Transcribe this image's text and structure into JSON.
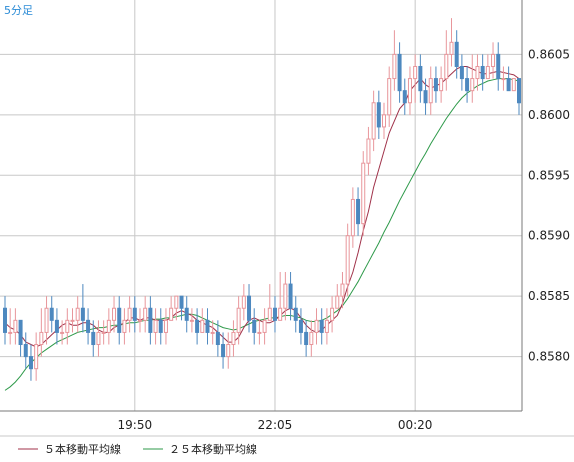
{
  "chart_data": {
    "type": "candlestick",
    "timeframe_label": "5分足",
    "ylim": [
      0.85755,
      0.86095
    ],
    "y_ticks": [
      "0.8605",
      "0.8600",
      "0.8595",
      "0.8590",
      "0.8585",
      "0.8580"
    ],
    "x_ticks": [
      "19:50",
      "22:05",
      "00:20"
    ],
    "grid": true,
    "colors": {
      "up": "#e8969b",
      "down": "#4d88bf",
      "ma5": "#a0324a",
      "ma25": "#2e9a4a",
      "grid": "#c8c8c8",
      "axis": "#7a7a7a"
    },
    "legend": [
      {
        "label": "５本移動平均線",
        "color": "#a0324a"
      },
      {
        "label": "２５本移動平均線",
        "color": "#2e9a4a"
      }
    ],
    "candles": [
      [
        0.8584,
        0.8582,
        0.8585,
        0.8581
      ],
      [
        0.8582,
        0.8582,
        0.8584,
        0.8581
      ],
      [
        0.8582,
        0.8583,
        0.8584,
        0.8581
      ],
      [
        0.8583,
        0.8581,
        0.8583,
        0.858
      ],
      [
        0.8581,
        0.858,
        0.8582,
        0.8579
      ],
      [
        0.858,
        0.8579,
        0.8581,
        0.8578
      ],
      [
        0.8579,
        0.8581,
        0.8582,
        0.8578
      ],
      [
        0.8581,
        0.8582,
        0.8584,
        0.858
      ],
      [
        0.8582,
        0.8584,
        0.8585,
        0.8581
      ],
      [
        0.8584,
        0.8583,
        0.8585,
        0.8582
      ],
      [
        0.8583,
        0.8582,
        0.8584,
        0.8581
      ],
      [
        0.8582,
        0.8582,
        0.8583,
        0.8581
      ],
      [
        0.8582,
        0.8583,
        0.8584,
        0.8581
      ],
      [
        0.8583,
        0.8583,
        0.8584,
        0.8582
      ],
      [
        0.8583,
        0.8584,
        0.8585,
        0.8582
      ],
      [
        0.8584,
        0.8583,
        0.8586,
        0.8582
      ],
      [
        0.8583,
        0.8582,
        0.8584,
        0.8581
      ],
      [
        0.8582,
        0.8581,
        0.8583,
        0.858
      ],
      [
        0.8581,
        0.8582,
        0.8583,
        0.858
      ],
      [
        0.8582,
        0.8582,
        0.8583,
        0.8581
      ],
      [
        0.8582,
        0.8583,
        0.8584,
        0.8581
      ],
      [
        0.8583,
        0.8584,
        0.8585,
        0.8582
      ],
      [
        0.8584,
        0.8582,
        0.8585,
        0.8581
      ],
      [
        0.8582,
        0.8583,
        0.8584,
        0.8581
      ],
      [
        0.8583,
        0.8584,
        0.8585,
        0.8582
      ],
      [
        0.8584,
        0.8583,
        0.8585,
        0.8582
      ],
      [
        0.8583,
        0.8583,
        0.8584,
        0.8582
      ],
      [
        0.8583,
        0.8584,
        0.8585,
        0.8582
      ],
      [
        0.8584,
        0.8582,
        0.8585,
        0.8581
      ],
      [
        0.8582,
        0.8583,
        0.8584,
        0.8581
      ],
      [
        0.8583,
        0.8582,
        0.8584,
        0.8581
      ],
      [
        0.8582,
        0.8583,
        0.8584,
        0.8581
      ],
      [
        0.8583,
        0.8584,
        0.8585,
        0.8583
      ],
      [
        0.8584,
        0.8585,
        0.8585,
        0.8583
      ],
      [
        0.8585,
        0.8584,
        0.8585,
        0.8583
      ],
      [
        0.8584,
        0.8583,
        0.8585,
        0.8582
      ],
      [
        0.8583,
        0.8583,
        0.8584,
        0.8582
      ],
      [
        0.8583,
        0.8582,
        0.8584,
        0.8581
      ],
      [
        0.8582,
        0.8583,
        0.8584,
        0.8582
      ],
      [
        0.8583,
        0.8582,
        0.8584,
        0.8581
      ],
      [
        0.8582,
        0.8582,
        0.8583,
        0.8581
      ],
      [
        0.8582,
        0.8581,
        0.8583,
        0.858
      ],
      [
        0.8581,
        0.858,
        0.8582,
        0.8579
      ],
      [
        0.858,
        0.8581,
        0.8582,
        0.8579
      ],
      [
        0.8581,
        0.8582,
        0.8583,
        0.858
      ],
      [
        0.8582,
        0.8584,
        0.8585,
        0.8581
      ],
      [
        0.8584,
        0.8585,
        0.8586,
        0.8583
      ],
      [
        0.8585,
        0.8583,
        0.8586,
        0.8582
      ],
      [
        0.8583,
        0.8582,
        0.8584,
        0.8581
      ],
      [
        0.8582,
        0.8582,
        0.8583,
        0.8581
      ],
      [
        0.8582,
        0.8583,
        0.8584,
        0.8581
      ],
      [
        0.8583,
        0.8584,
        0.8586,
        0.8583
      ],
      [
        0.8584,
        0.8583,
        0.8585,
        0.8582
      ],
      [
        0.8583,
        0.8584,
        0.8587,
        0.8583
      ],
      [
        0.8584,
        0.8586,
        0.8587,
        0.8583
      ],
      [
        0.8586,
        0.8584,
        0.8587,
        0.8583
      ],
      [
        0.8584,
        0.8583,
        0.8585,
        0.8582
      ],
      [
        0.8583,
        0.8582,
        0.8584,
        0.8581
      ],
      [
        0.8582,
        0.8581,
        0.8583,
        0.858
      ],
      [
        0.8581,
        0.8582,
        0.8583,
        0.858
      ],
      [
        0.8582,
        0.8583,
        0.8584,
        0.8581
      ],
      [
        0.8583,
        0.8582,
        0.8584,
        0.8581
      ],
      [
        0.8582,
        0.8583,
        0.8584,
        0.8581
      ],
      [
        0.8583,
        0.8584,
        0.8585,
        0.8582
      ],
      [
        0.8584,
        0.8585,
        0.8586,
        0.8584
      ],
      [
        0.8585,
        0.8586,
        0.8587,
        0.8584
      ],
      [
        0.8586,
        0.859,
        0.8591,
        0.8585
      ],
      [
        0.859,
        0.8593,
        0.8594,
        0.8589
      ],
      [
        0.8593,
        0.8591,
        0.8594,
        0.859
      ],
      [
        0.8591,
        0.8596,
        0.8597,
        0.859
      ],
      [
        0.8596,
        0.8598,
        0.8599,
        0.8595
      ],
      [
        0.8598,
        0.8601,
        0.8602,
        0.8597
      ],
      [
        0.8601,
        0.8599,
        0.8602,
        0.8598
      ],
      [
        0.8599,
        0.86,
        0.8601,
        0.8598
      ],
      [
        0.86,
        0.8603,
        0.8604,
        0.8599
      ],
      [
        0.8603,
        0.8605,
        0.8607,
        0.8602
      ],
      [
        0.8605,
        0.8602,
        0.8606,
        0.8601
      ],
      [
        0.8602,
        0.8601,
        0.8603,
        0.86
      ],
      [
        0.8601,
        0.8603,
        0.8604,
        0.86
      ],
      [
        0.8603,
        0.8604,
        0.8605,
        0.8601
      ],
      [
        0.8604,
        0.8602,
        0.8605,
        0.8601
      ],
      [
        0.8602,
        0.8601,
        0.8603,
        0.86
      ],
      [
        0.8601,
        0.8603,
        0.8604,
        0.86
      ],
      [
        0.8603,
        0.8602,
        0.8604,
        0.8601
      ],
      [
        0.8602,
        0.8603,
        0.8604,
        0.8601
      ],
      [
        0.8603,
        0.8605,
        0.8607,
        0.8602
      ],
      [
        0.8605,
        0.8606,
        0.8608,
        0.8604
      ],
      [
        0.8606,
        0.8604,
        0.8607,
        0.8603
      ],
      [
        0.8604,
        0.8603,
        0.8605,
        0.8602
      ],
      [
        0.8603,
        0.8602,
        0.8604,
        0.8601
      ],
      [
        0.8602,
        0.8603,
        0.8605,
        0.8601
      ],
      [
        0.8603,
        0.8604,
        0.8605,
        0.8602
      ],
      [
        0.8604,
        0.8603,
        0.8605,
        0.8602
      ],
      [
        0.8603,
        0.8604,
        0.8605,
        0.8603
      ],
      [
        0.8604,
        0.8605,
        0.8606,
        0.8603
      ],
      [
        0.8605,
        0.8603,
        0.8606,
        0.8602
      ],
      [
        0.8603,
        0.8603,
        0.8604,
        0.8602
      ],
      [
        0.8603,
        0.8602,
        0.8604,
        0.8602
      ],
      [
        0.8602,
        0.8603,
        0.8603,
        0.8602
      ],
      [
        0.8603,
        0.8601,
        0.8603,
        0.86
      ]
    ],
    "ma5": [
      0.85828,
      0.85824,
      0.85822,
      0.85818,
      0.85812,
      0.8581,
      0.85808,
      0.8581,
      0.85814,
      0.85818,
      0.85822,
      0.85826,
      0.85828,
      0.85826,
      0.85826,
      0.85828,
      0.85828,
      0.85826,
      0.85822,
      0.8582,
      0.8582,
      0.85824,
      0.85826,
      0.85828,
      0.85832,
      0.85832,
      0.8583,
      0.85832,
      0.85832,
      0.8583,
      0.8583,
      0.8583,
      0.85832,
      0.85836,
      0.85838,
      0.85836,
      0.85834,
      0.8583,
      0.85828,
      0.85826,
      0.85824,
      0.8582,
      0.85816,
      0.85812,
      0.85812,
      0.85816,
      0.85824,
      0.8583,
      0.85832,
      0.8583,
      0.85828,
      0.85828,
      0.8583,
      0.85834,
      0.85838,
      0.8584,
      0.85838,
      0.85832,
      0.85826,
      0.85822,
      0.8582,
      0.85822,
      0.85826,
      0.8583,
      0.85834,
      0.85844,
      0.85858,
      0.8587,
      0.85886,
      0.85904,
      0.8592,
      0.8594,
      0.85955,
      0.8597,
      0.85985,
      0.85995,
      0.86005,
      0.8601,
      0.8602,
      0.86025,
      0.8603,
      0.86025,
      0.86022,
      0.86024,
      0.86026,
      0.8603,
      0.86034,
      0.86038,
      0.8604,
      0.8604,
      0.86038,
      0.86036,
      0.86034,
      0.86034,
      0.86035,
      0.86036,
      0.86035,
      0.86034,
      0.86033,
      0.8603
    ],
    "ma25": [
      0.85772,
      0.85775,
      0.85779,
      0.85784,
      0.8579,
      0.85795,
      0.85799,
      0.85803,
      0.85806,
      0.85809,
      0.85812,
      0.85814,
      0.85816,
      0.85818,
      0.8582,
      0.85821,
      0.85822,
      0.85823,
      0.85824,
      0.85824,
      0.85825,
      0.85826,
      0.85826,
      0.85827,
      0.85828,
      0.85828,
      0.85829,
      0.8583,
      0.8583,
      0.85831,
      0.85831,
      0.85832,
      0.85832,
      0.85833,
      0.85834,
      0.85835,
      0.85835,
      0.85834,
      0.85832,
      0.8583,
      0.85828,
      0.85826,
      0.85824,
      0.85823,
      0.85822,
      0.85823,
      0.85825,
      0.85827,
      0.85829,
      0.8583,
      0.85831,
      0.85832,
      0.85832,
      0.85833,
      0.85834,
      0.85834,
      0.85833,
      0.85832,
      0.8583,
      0.85829,
      0.85829,
      0.8583,
      0.85832,
      0.85835,
      0.85838,
      0.85842,
      0.85848,
      0.85855,
      0.85862,
      0.8587,
      0.85878,
      0.85886,
      0.85894,
      0.85903,
      0.85911,
      0.8592,
      0.85929,
      0.85937,
      0.85945,
      0.85953,
      0.85961,
      0.85968,
      0.85976,
      0.85983,
      0.8599,
      0.85997,
      0.86003,
      0.86009,
      0.86014,
      0.86018,
      0.86021,
      0.86024,
      0.86026,
      0.86028,
      0.86029,
      0.8603,
      0.8603,
      0.8603,
      0.86029,
      0.86028
    ]
  }
}
